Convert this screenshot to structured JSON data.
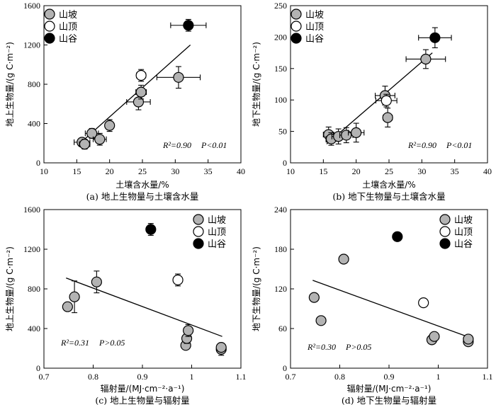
{
  "series_style": {
    "山坡": {
      "fill": "#b3b3b3",
      "stroke": "#000000"
    },
    "山顶": {
      "fill": "#ffffff",
      "stroke": "#000000"
    },
    "山谷": {
      "fill": "#000000",
      "stroke": "#000000"
    }
  },
  "chart_data": [
    {
      "type": "scatter",
      "caption": "(a) 地上生物量与土壤含水量",
      "xlabel": "土壤含水量/%",
      "ylabel": "地上生物量/(g C·m⁻²)",
      "xlim": [
        10,
        40
      ],
      "ylim": [
        0,
        1600
      ],
      "xticks": [
        10,
        15,
        20,
        25,
        30,
        35,
        40
      ],
      "yticks": [
        0,
        400,
        800,
        1200,
        1600
      ],
      "legend_position": "top-left",
      "stats": {
        "r2": "R²=0.90",
        "p": "P<0.01"
      },
      "fit_line": {
        "x": [
          15.5,
          32.3
        ],
        "y": [
          200,
          1200
        ]
      },
      "series": [
        {
          "name": "山坡",
          "points": [
            {
              "x": 15.8,
              "y": 210,
              "xerr": 1.2,
              "yerr": 40
            },
            {
              "x": 16.2,
              "y": 190,
              "xerr": 0.8,
              "yerr": 50
            },
            {
              "x": 17.3,
              "y": 300,
              "xerr": 1.0,
              "yerr": 50
            },
            {
              "x": 18.5,
              "y": 240,
              "xerr": 1.0,
              "yerr": 60
            },
            {
              "x": 20.0,
              "y": 380,
              "xerr": 0.6,
              "yerr": 60
            },
            {
              "x": 24.4,
              "y": 620,
              "xerr": 1.8,
              "yerr": 80
            },
            {
              "x": 24.8,
              "y": 720,
              "xerr": 0.8,
              "yerr": 70
            },
            {
              "x": 30.5,
              "y": 870,
              "xerr": 3.3,
              "yerr": 110
            }
          ]
        },
        {
          "name": "山顶",
          "points": [
            {
              "x": 24.8,
              "y": 890,
              "xerr": 0.7,
              "yerr": 60
            }
          ]
        },
        {
          "name": "山谷",
          "points": [
            {
              "x": 32.0,
              "y": 1400,
              "xerr": 2.7,
              "yerr": 60
            }
          ]
        }
      ]
    },
    {
      "type": "scatter",
      "caption": "(b) 地下生物量与土壤含水量",
      "xlabel": "土壤含水量/%",
      "ylabel": "地下生物量/(g C·m⁻²)",
      "xlim": [
        10,
        40
      ],
      "ylim": [
        0,
        250
      ],
      "xticks": [
        10,
        15,
        20,
        25,
        30,
        35,
        40
      ],
      "yticks": [
        0,
        50,
        100,
        150,
        200,
        250
      ],
      "legend_position": "top-left",
      "stats": {
        "r2": "R²=0.90",
        "p": "P<0.01"
      },
      "fit_line": {
        "x": [
          15.5,
          31.6
        ],
        "y": [
          30,
          175
        ]
      },
      "series": [
        {
          "name": "山坡",
          "points": [
            {
              "x": 15.8,
              "y": 45,
              "xerr": 0.8,
              "yerr": 12
            },
            {
              "x": 16.2,
              "y": 38,
              "xerr": 0.8,
              "yerr": 10
            },
            {
              "x": 17.3,
              "y": 42,
              "xerr": 1.0,
              "yerr": 12
            },
            {
              "x": 18.5,
              "y": 44,
              "xerr": 1.0,
              "yerr": 12
            },
            {
              "x": 20.0,
              "y": 48,
              "xerr": 1.2,
              "yerr": 15
            },
            {
              "x": 24.4,
              "y": 107,
              "xerr": 1.5,
              "yerr": 15
            },
            {
              "x": 24.8,
              "y": 72,
              "xerr": 0.7,
              "yerr": 15
            },
            {
              "x": 30.6,
              "y": 165,
              "xerr": 3.0,
              "yerr": 15
            }
          ]
        },
        {
          "name": "山顶",
          "points": [
            {
              "x": 24.6,
              "y": 99,
              "xerr": 1.6,
              "yerr": 10
            }
          ]
        },
        {
          "name": "山谷",
          "points": [
            {
              "x": 32.0,
              "y": 199,
              "xerr": 2.5,
              "yerr": 16
            }
          ]
        }
      ]
    },
    {
      "type": "scatter",
      "caption": "(c) 地上生物量与辐射量",
      "xlabel": "辐射量/(MJ·cm⁻²·a⁻¹)",
      "ylabel": "地上生物量/(g C·m⁻²)",
      "xlim": [
        0.7,
        1.1
      ],
      "ylim": [
        0,
        1600
      ],
      "xticks": [
        0.7,
        0.8,
        0.9,
        1.0,
        1.1
      ],
      "ytick_values": [
        0,
        400,
        800,
        1200,
        1600
      ],
      "yticks": [
        0,
        400,
        800,
        1200,
        1600
      ],
      "xtick_labels": [
        "0.7",
        "0.8",
        "0.9",
        "1",
        "1.1"
      ],
      "legend_position": "top-right",
      "stats": {
        "r2": "R²=0.31",
        "p": "P>0.05"
      },
      "fit_line": {
        "x": [
          0.745,
          1.062
        ],
        "y": [
          910,
          320
        ]
      },
      "series": [
        {
          "name": "山坡",
          "points": [
            {
              "x": 0.748,
              "y": 620,
              "xerr": 0,
              "yerr": 0
            },
            {
              "x": 0.762,
              "y": 720,
              "xerr": 0,
              "yerr": 160
            },
            {
              "x": 0.807,
              "y": 870,
              "xerr": 0,
              "yerr": 110
            },
            {
              "x": 0.988,
              "y": 230,
              "xerr": 0,
              "yerr": 40
            },
            {
              "x": 0.99,
              "y": 300,
              "xerr": 0,
              "yerr": 50
            },
            {
              "x": 0.993,
              "y": 380,
              "xerr": 0,
              "yerr": 60
            },
            {
              "x": 1.06,
              "y": 190,
              "xerr": 0,
              "yerr": 60
            },
            {
              "x": 1.06,
              "y": 210,
              "xerr": 0,
              "yerr": 40
            }
          ]
        },
        {
          "name": "山顶",
          "points": [
            {
              "x": 0.972,
              "y": 890,
              "xerr": 0,
              "yerr": 60
            }
          ]
        },
        {
          "name": "山谷",
          "points": [
            {
              "x": 0.917,
              "y": 1400,
              "xerr": 0,
              "yerr": 60
            }
          ]
        }
      ]
    },
    {
      "type": "scatter",
      "caption": "(d) 地下生物量与辐射量",
      "xlabel": "辐射量/(MJ·cm⁻²·a⁻¹)",
      "ylabel": "地下生物量/(g C·m⁻²)",
      "xlim": [
        0.7,
        1.1
      ],
      "ylim": [
        0,
        240
      ],
      "xticks": [
        0.7,
        0.8,
        0.9,
        1.0,
        1.1
      ],
      "yticks": [
        0,
        60,
        120,
        180,
        240
      ],
      "xtick_labels": [
        "0.7",
        "0.8",
        "0.9",
        "1",
        "1.1"
      ],
      "legend_position": "top-right",
      "stats": {
        "r2": "R²=0.30",
        "p": "P>0.05"
      },
      "fit_line": {
        "x": [
          0.745,
          1.062
        ],
        "y": [
          133,
          47
        ]
      },
      "series": [
        {
          "name": "山坡",
          "points": [
            {
              "x": 0.748,
              "y": 107,
              "xerr": 0,
              "yerr": 0
            },
            {
              "x": 0.762,
              "y": 72,
              "xerr": 0,
              "yerr": 0
            },
            {
              "x": 0.808,
              "y": 165,
              "xerr": 0,
              "yerr": 0
            },
            {
              "x": 0.987,
              "y": 43,
              "xerr": 0,
              "yerr": 0
            },
            {
              "x": 0.992,
              "y": 48,
              "xerr": 0,
              "yerr": 0
            },
            {
              "x": 1.061,
              "y": 40,
              "xerr": 0,
              "yerr": 0
            },
            {
              "x": 1.061,
              "y": 44,
              "xerr": 0,
              "yerr": 0
            }
          ]
        },
        {
          "name": "山顶",
          "points": [
            {
              "x": 0.97,
              "y": 99,
              "xerr": 0,
              "yerr": 0
            }
          ]
        },
        {
          "name": "山谷",
          "points": [
            {
              "x": 0.917,
              "y": 199,
              "xerr": 0,
              "yerr": 0
            }
          ]
        }
      ]
    }
  ]
}
